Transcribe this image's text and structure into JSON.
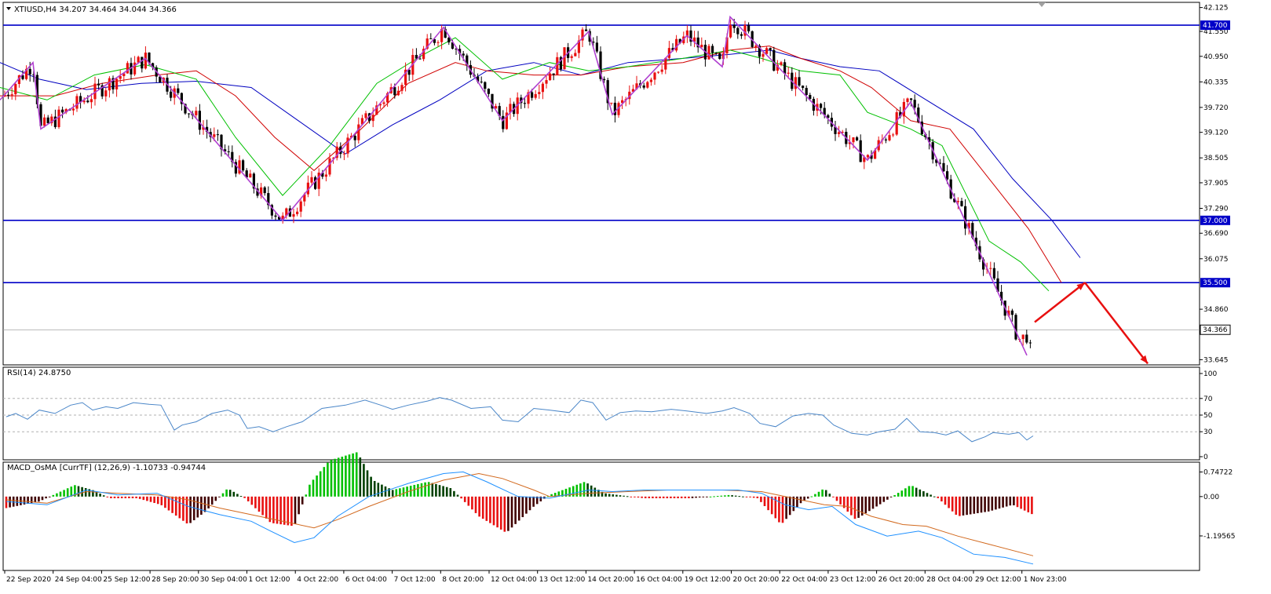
{
  "colors": {
    "background": "#ffffff",
    "frame": "#000000",
    "bull_candle": "#e81010",
    "bear_candle": "#000000",
    "level_line": "#0000c8",
    "level_label_bg": "#0000c8",
    "level_label_text": "#ffffff",
    "price_label_bg": "#ffffff",
    "ma_fast": "#00c000",
    "ma_mid": "#d00000",
    "ma_slow": "#0000c0",
    "zigzag": "#b040d0",
    "forecast_arrow": "#e81010",
    "rsi_line": "#4a86c8",
    "rsi_level": "#b0b0b0",
    "macd_pos_up": "#00c000",
    "macd_pos_down": "#004000",
    "macd_neg_down": "#e81010",
    "macd_neg_up": "#400000",
    "macd_main": "#1e90ff",
    "macd_signal": "#d2691e"
  },
  "chart_data": [
    {
      "type": "candlestick",
      "title": "XTIUSD,H4  34.207 34.464 34.044 34.366",
      "symbol": "XTIUSD",
      "timeframe": "H4",
      "ohlc_header": {
        "open": 34.207,
        "high": 34.464,
        "low": 34.044,
        "close": 34.366
      },
      "current_price": 34.366,
      "current_price_label": "34.366",
      "ylim": [
        33.52,
        42.25
      ],
      "y_ticks": [
        42.125,
        41.55,
        40.95,
        40.335,
        39.72,
        39.12,
        38.505,
        37.905,
        37.29,
        36.69,
        36.075,
        34.86,
        33.645
      ],
      "y_tick_labels": [
        "42.125",
        "41.550",
        "40.950",
        "40.335",
        "39.720",
        "39.120",
        "38.505",
        "37.905",
        "37.290",
        "36.690",
        "36.075",
        "34.860",
        "33.645"
      ],
      "levels": [
        {
          "value": 41.7,
          "label": "41.700"
        },
        {
          "value": 37.0,
          "label": "37.000"
        },
        {
          "value": 35.5,
          "label": "35.500"
        }
      ],
      "zigzag": [
        [
          0,
          39.9
        ],
        [
          42,
          40.8
        ],
        [
          52,
          39.2
        ],
        [
          185,
          40.9
        ],
        [
          360,
          37.0
        ],
        [
          565,
          41.65
        ],
        [
          640,
          39.4
        ],
        [
          750,
          41.55
        ],
        [
          780,
          39.55
        ],
        [
          875,
          41.45
        ],
        [
          920,
          40.7
        ],
        [
          930,
          41.9
        ],
        [
          1105,
          38.45
        ],
        [
          1160,
          39.85
        ],
        [
          1308,
          33.75
        ]
      ],
      "forecast_arrow": [
        [
          1318,
          34.55
        ],
        [
          1382,
          35.5
        ],
        [
          1462,
          33.55
        ]
      ],
      "ma_fast": [
        [
          0,
          40.2
        ],
        [
          60,
          39.9
        ],
        [
          120,
          40.5
        ],
        [
          185,
          40.75
        ],
        [
          250,
          40.4
        ],
        [
          300,
          39.0
        ],
        [
          360,
          37.6
        ],
        [
          420,
          38.8
        ],
        [
          480,
          40.3
        ],
        [
          540,
          41.0
        ],
        [
          580,
          41.4
        ],
        [
          640,
          40.4
        ],
        [
          700,
          40.8
        ],
        [
          750,
          40.6
        ],
        [
          800,
          40.7
        ],
        [
          870,
          40.9
        ],
        [
          930,
          41.1
        ],
        [
          970,
          40.9
        ],
        [
          1020,
          40.6
        ],
        [
          1070,
          40.5
        ],
        [
          1105,
          39.6
        ],
        [
          1160,
          39.2
        ],
        [
          1200,
          38.8
        ],
        [
          1260,
          36.5
        ],
        [
          1300,
          36.0
        ],
        [
          1336,
          35.3
        ]
      ],
      "ma_mid": [
        [
          0,
          40.0
        ],
        [
          70,
          40.0
        ],
        [
          130,
          40.3
        ],
        [
          200,
          40.5
        ],
        [
          250,
          40.6
        ],
        [
          300,
          40.0
        ],
        [
          350,
          39.0
        ],
        [
          400,
          38.2
        ],
        [
          460,
          39.2
        ],
        [
          520,
          40.3
        ],
        [
          580,
          40.8
        ],
        [
          620,
          40.6
        ],
        [
          680,
          40.5
        ],
        [
          740,
          40.5
        ],
        [
          800,
          40.7
        ],
        [
          870,
          40.8
        ],
        [
          930,
          41.1
        ],
        [
          980,
          41.2
        ],
        [
          1020,
          40.9
        ],
        [
          1070,
          40.6
        ],
        [
          1110,
          40.2
        ],
        [
          1160,
          39.4
        ],
        [
          1210,
          39.2
        ],
        [
          1260,
          38.0
        ],
        [
          1310,
          36.8
        ],
        [
          1352,
          35.5
        ]
      ],
      "ma_slow": [
        [
          0,
          40.8
        ],
        [
          50,
          40.4
        ],
        [
          110,
          40.15
        ],
        [
          180,
          40.3
        ],
        [
          250,
          40.35
        ],
        [
          320,
          40.2
        ],
        [
          380,
          39.4
        ],
        [
          440,
          38.6
        ],
        [
          500,
          39.3
        ],
        [
          560,
          39.9
        ],
        [
          620,
          40.6
        ],
        [
          680,
          40.8
        ],
        [
          740,
          40.5
        ],
        [
          800,
          40.8
        ],
        [
          870,
          40.9
        ],
        [
          930,
          41.0
        ],
        [
          980,
          41.1
        ],
        [
          1020,
          40.9
        ],
        [
          1070,
          40.7
        ],
        [
          1120,
          40.6
        ],
        [
          1180,
          39.9
        ],
        [
          1240,
          39.2
        ],
        [
          1290,
          38.0
        ],
        [
          1340,
          37.0
        ],
        [
          1376,
          36.1
        ]
      ],
      "x_tick_labels": [
        "22 Sep 2020",
        "24 Sep 04:00",
        "25 Sep 12:00",
        "28 Sep 20:00",
        "30 Sep 04:00",
        "1 Oct 12:00",
        "4 Oct 22:00",
        "6 Oct 04:00",
        "7 Oct 12:00",
        "8 Oct 20:00",
        "12 Oct 04:00",
        "13 Oct 12:00",
        "14 Oct 20:00",
        "16 Oct 04:00",
        "19 Oct 12:00",
        "20 Oct 20:00",
        "22 Oct 04:00",
        "23 Oct 12:00",
        "26 Oct 20:00",
        "28 Oct 04:00",
        "29 Oct 12:00",
        "1 Nov 23:00"
      ]
    },
    {
      "type": "line",
      "title": "RSI(14) 24.8750",
      "ylim": [
        0,
        100
      ],
      "y_ticks": [
        100,
        70,
        50,
        30,
        0
      ],
      "y_tick_labels": [
        "100",
        "70",
        "50",
        "30",
        "0"
      ],
      "levels": [
        70,
        50,
        30
      ],
      "series": [
        {
          "points": [
            [
              8,
              48
            ],
            [
              20,
              52
            ],
            [
              35,
              45
            ],
            [
              50,
              56
            ],
            [
              70,
              52
            ],
            [
              90,
              62
            ],
            [
              105,
              65
            ],
            [
              118,
              56
            ],
            [
              135,
              60
            ],
            [
              150,
              58
            ],
            [
              170,
              65
            ],
            [
              190,
              63
            ],
            [
              205,
              62
            ],
            [
              222,
              32
            ],
            [
              232,
              38
            ],
            [
              250,
              42
            ],
            [
              270,
              52
            ],
            [
              290,
              56
            ],
            [
              305,
              50
            ],
            [
              315,
              34
            ],
            [
              330,
              36
            ],
            [
              348,
              30
            ],
            [
              365,
              36
            ],
            [
              385,
              42
            ],
            [
              410,
              58
            ],
            [
              440,
              62
            ],
            [
              465,
              68
            ],
            [
              485,
              62
            ],
            [
              500,
              57
            ],
            [
              520,
              62
            ],
            [
              545,
              67
            ],
            [
              560,
              71
            ],
            [
              575,
              68
            ],
            [
              600,
              58
            ],
            [
              625,
              60
            ],
            [
              640,
              44
            ],
            [
              660,
              42
            ],
            [
              680,
              58
            ],
            [
              700,
              56
            ],
            [
              725,
              53
            ],
            [
              740,
              68
            ],
            [
              755,
              65
            ],
            [
              772,
              44
            ],
            [
              790,
              53
            ],
            [
              810,
              55
            ],
            [
              830,
              54
            ],
            [
              855,
              57
            ],
            [
              875,
              55
            ],
            [
              900,
              52
            ],
            [
              920,
              55
            ],
            [
              935,
              59
            ],
            [
              955,
              52
            ],
            [
              968,
              40
            ],
            [
              988,
              36
            ],
            [
              1010,
              49
            ],
            [
              1030,
              52
            ],
            [
              1048,
              50
            ],
            [
              1062,
              38
            ],
            [
              1085,
              28
            ],
            [
              1105,
              26
            ],
            [
              1120,
              30
            ],
            [
              1140,
              33
            ],
            [
              1155,
              46
            ],
            [
              1172,
              30
            ],
            [
              1190,
              29
            ],
            [
              1205,
              26
            ],
            [
              1220,
              31
            ],
            [
              1238,
              18
            ],
            [
              1255,
              24
            ],
            [
              1265,
              29
            ],
            [
              1285,
              27
            ],
            [
              1298,
              29
            ],
            [
              1308,
              20
            ],
            [
              1316,
              25
            ]
          ]
        }
      ]
    },
    {
      "type": "bar",
      "title": "MACD_OsMA [CurrTF] (12,26,9) -1.10733 -0.94744",
      "ylim": [
        -2.15,
        0.95
      ],
      "y_ticks": [
        0.74722,
        0.0,
        -1.19565
      ],
      "y_tick_labels": [
        "0.74722",
        "0.00",
        "-1.19565"
      ],
      "histogram": [
        [
          8,
          -0.35
        ],
        [
          50,
          -0.15
        ],
        [
          95,
          0.35
        ],
        [
          118,
          0.2
        ],
        [
          140,
          -0.05
        ],
        [
          175,
          -0.05
        ],
        [
          205,
          -0.25
        ],
        [
          240,
          -0.85
        ],
        [
          262,
          -0.45
        ],
        [
          290,
          0.25
        ],
        [
          312,
          -0.05
        ],
        [
          345,
          -0.8
        ],
        [
          375,
          -0.9
        ],
        [
          395,
          0.4
        ],
        [
          420,
          1.1
        ],
        [
          455,
          1.35
        ],
        [
          475,
          0.5
        ],
        [
          500,
          0.2
        ],
        [
          545,
          0.45
        ],
        [
          575,
          0.25
        ],
        [
          610,
          -0.6
        ],
        [
          645,
          -1.1
        ],
        [
          680,
          -0.3
        ],
        [
          700,
          0.05
        ],
        [
          745,
          0.45
        ],
        [
          770,
          0.1
        ],
        [
          820,
          -0.05
        ],
        [
          880,
          -0.05
        ],
        [
          930,
          0.05
        ],
        [
          965,
          -0.05
        ],
        [
          995,
          -0.85
        ],
        [
          1020,
          -0.2
        ],
        [
          1050,
          0.25
        ],
        [
          1090,
          -0.7
        ],
        [
          1120,
          -0.25
        ],
        [
          1160,
          0.35
        ],
        [
          1195,
          -0.05
        ],
        [
          1220,
          -0.6
        ],
        [
          1260,
          -0.45
        ],
        [
          1290,
          -0.25
        ],
        [
          1316,
          -0.55
        ]
      ],
      "series": [
        {
          "points": [
            [
              8,
              -0.15
            ],
            [
              60,
              -0.25
            ],
            [
              110,
              0.2
            ],
            [
              150,
              0.05
            ],
            [
              200,
              0.1
            ],
            [
              240,
              -0.3
            ],
            [
              280,
              -0.55
            ],
            [
              320,
              -0.75
            ],
            [
              345,
              -1.05
            ],
            [
              375,
              -1.4
            ],
            [
              400,
              -1.25
            ],
            [
              430,
              -0.6
            ],
            [
              470,
              0.0
            ],
            [
              520,
              0.4
            ],
            [
              565,
              0.7
            ],
            [
              590,
              0.75
            ],
            [
              620,
              0.45
            ],
            [
              660,
              0.0
            ],
            [
              700,
              -0.05
            ],
            [
              750,
              0.2
            ],
            [
              780,
              0.15
            ],
            [
              820,
              0.2
            ],
            [
              880,
              0.2
            ],
            [
              940,
              0.2
            ],
            [
              970,
              0.1
            ],
            [
              1000,
              -0.25
            ],
            [
              1030,
              -0.4
            ],
            [
              1060,
              -0.3
            ],
            [
              1090,
              -0.85
            ],
            [
              1130,
              -1.2
            ],
            [
              1170,
              -1.05
            ],
            [
              1200,
              -1.25
            ],
            [
              1240,
              -1.75
            ],
            [
              1280,
              -1.85
            ],
            [
              1316,
              -2.05
            ]
          ]
        },
        {
          "points": [
            [
              8,
              -0.1
            ],
            [
              60,
              -0.2
            ],
            [
              110,
              0.15
            ],
            [
              150,
              0.1
            ],
            [
              200,
              0.05
            ],
            [
              240,
              -0.1
            ],
            [
              280,
              -0.35
            ],
            [
              320,
              -0.55
            ],
            [
              360,
              -0.75
            ],
            [
              400,
              -0.95
            ],
            [
              430,
              -0.7
            ],
            [
              470,
              -0.3
            ],
            [
              520,
              0.15
            ],
            [
              565,
              0.5
            ],
            [
              610,
              0.7
            ],
            [
              640,
              0.55
            ],
            [
              680,
              0.2
            ],
            [
              700,
              0.0
            ],
            [
              750,
              0.1
            ],
            [
              800,
              0.15
            ],
            [
              850,
              0.2
            ],
            [
              920,
              0.2
            ],
            [
              970,
              0.15
            ],
            [
              1000,
              0.0
            ],
            [
              1050,
              -0.25
            ],
            [
              1080,
              -0.3
            ],
            [
              1110,
              -0.6
            ],
            [
              1150,
              -0.85
            ],
            [
              1180,
              -0.9
            ],
            [
              1220,
              -1.2
            ],
            [
              1260,
              -1.45
            ],
            [
              1316,
              -1.8
            ]
          ]
        }
      ]
    }
  ]
}
